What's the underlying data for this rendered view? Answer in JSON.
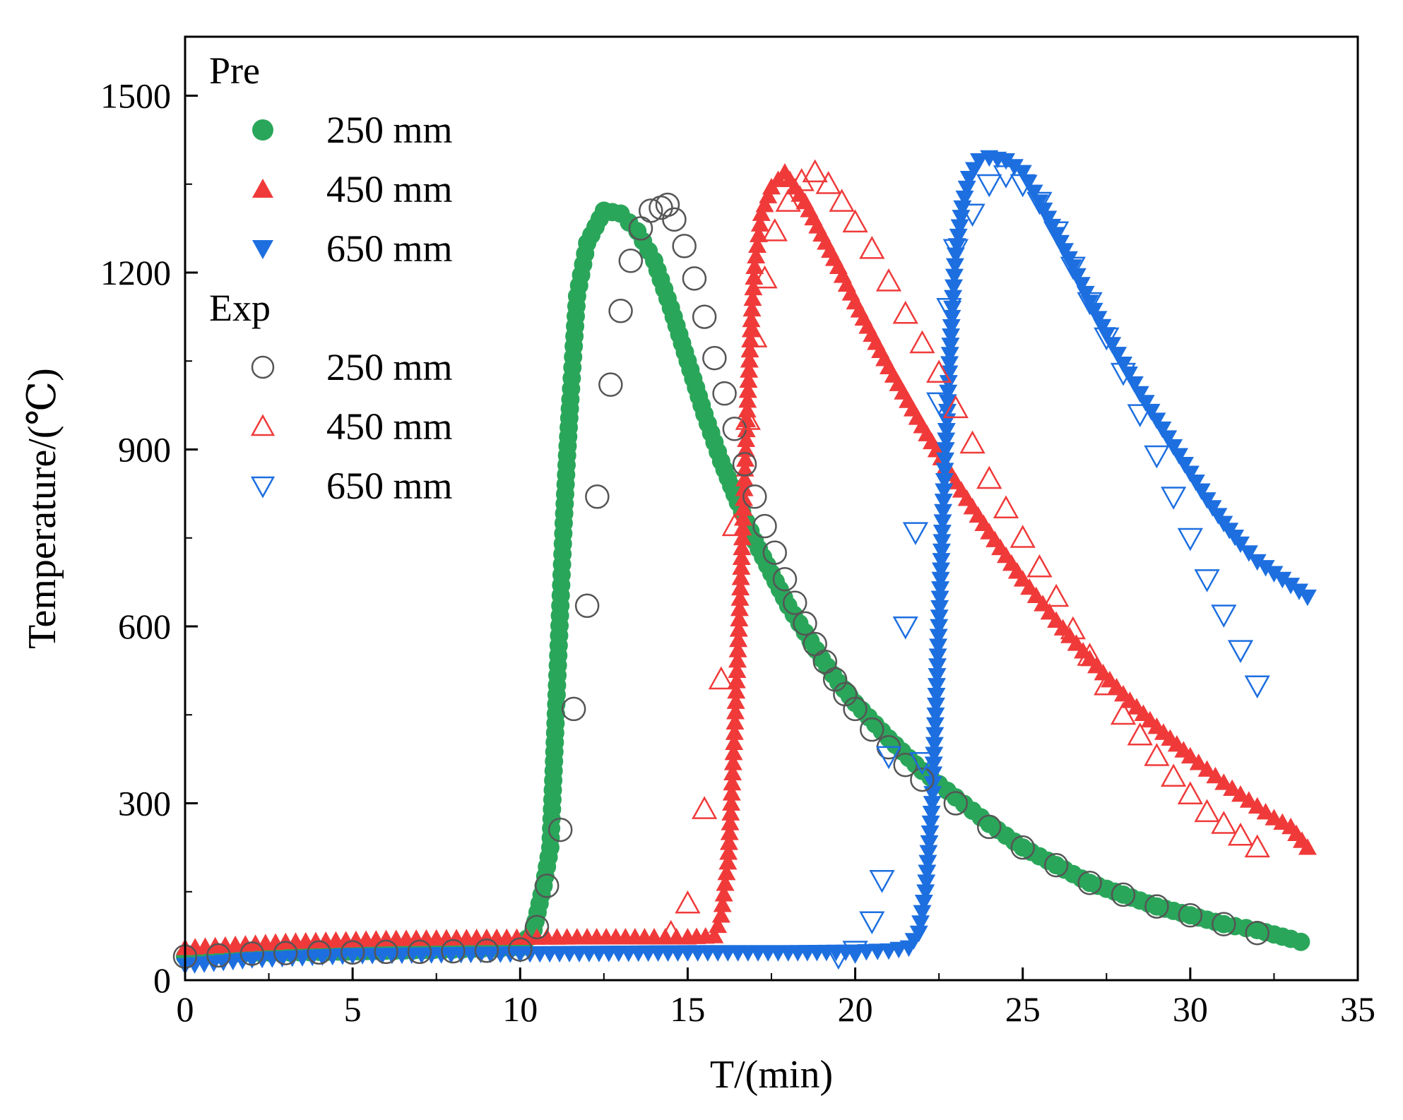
{
  "chart_data": {
    "type": "scatter",
    "xlabel": "T/(min)",
    "ylabel": "Temperature/(℃)",
    "xlim": [
      0,
      35
    ],
    "ylim": [
      0,
      1600
    ],
    "xticks": [
      0,
      5,
      10,
      15,
      20,
      25,
      30,
      35
    ],
    "yticks": [
      0,
      300,
      600,
      900,
      1200,
      1500
    ],
    "grid": false,
    "legend_position": "top-left",
    "legend": {
      "groups": [
        {
          "title": "Pre",
          "entries": [
            {
              "label": "250 mm",
              "marker": "filled-circle",
              "color": "#2aa65a"
            },
            {
              "label": "450 mm",
              "marker": "filled-triangle-up",
              "color": "#f03a3a"
            },
            {
              "label": "650 mm",
              "marker": "filled-triangle-down",
              "color": "#1d6fe0"
            }
          ]
        },
        {
          "title": "Exp",
          "entries": [
            {
              "label": "250 mm",
              "marker": "open-circle",
              "color": "#555555"
            },
            {
              "label": "450 mm",
              "marker": "open-triangle-up",
              "color": "#f03a3a"
            },
            {
              "label": "650 mm",
              "marker": "open-triangle-down",
              "color": "#1d6fe0"
            }
          ]
        }
      ]
    },
    "series": [
      {
        "group": "Pre",
        "name": "250 mm",
        "marker": "filled-circle",
        "color": "#2aa65a",
        "x": [
          0,
          2,
          4,
          6,
          8,
          10,
          10.4,
          10.7,
          10.9,
          11.0,
          11.1,
          11.2,
          11.3,
          11.4,
          11.5,
          11.6,
          11.7,
          12.0,
          12.5,
          13.0,
          13.5,
          14.0,
          14.5,
          15.0,
          15.5,
          16.0,
          16.5,
          17.0,
          17.5,
          18.0,
          18.5,
          19.0,
          19.5,
          20.0,
          21.0,
          22.0,
          23.0,
          24.0,
          25.0,
          26.0,
          27.0,
          28.0,
          29.0,
          30.0,
          31.0,
          32.0,
          33.0,
          33.3
        ],
        "y": [
          40,
          45,
          48,
          50,
          52,
          55,
          85,
          160,
          225,
          355,
          500,
          635,
          775,
          890,
          985,
          1075,
          1160,
          1250,
          1305,
          1300,
          1270,
          1220,
          1140,
          1050,
          960,
          880,
          810,
          745,
          690,
          635,
          590,
          545,
          505,
          470,
          410,
          355,
          310,
          265,
          225,
          195,
          165,
          145,
          125,
          110,
          95,
          85,
          70,
          65
        ]
      },
      {
        "group": "Pre",
        "name": "450 mm",
        "marker": "filled-triangle-up",
        "color": "#f03a3a",
        "x": [
          0,
          3,
          6,
          9,
          12,
          14,
          15,
          15.8,
          16.0,
          16.2,
          16.3,
          16.4,
          16.5,
          16.6,
          16.7,
          16.8,
          16.9,
          17.0,
          17.2,
          17.5,
          17.9,
          18.5,
          19.0,
          19.5,
          20.0,
          20.5,
          21.0,
          22.0,
          23.0,
          24.0,
          25.0,
          26.0,
          27.0,
          28.0,
          29.0,
          30.0,
          31.0,
          32.0,
          32.5,
          33.0,
          33.5
        ],
        "y": [
          55,
          65,
          70,
          72,
          73,
          73,
          73,
          75,
          110,
          200,
          300,
          420,
          560,
          700,
          850,
          1000,
          1120,
          1210,
          1300,
          1345,
          1370,
          1320,
          1265,
          1210,
          1150,
          1095,
          1040,
          940,
          845,
          760,
          680,
          610,
          545,
          485,
          430,
          380,
          335,
          295,
          275,
          260,
          225
        ]
      },
      {
        "group": "Pre",
        "name": "650 mm",
        "marker": "filled-triangle-down",
        "color": "#1d6fe0",
        "x": [
          0,
          2,
          5,
          10,
          15,
          18,
          20,
          21,
          21.6,
          21.9,
          22.1,
          22.3,
          22.4,
          22.5,
          22.6,
          22.7,
          22.8,
          22.9,
          23.0,
          23.2,
          23.4,
          23.7,
          24.0,
          24.5,
          25.0,
          25.5,
          26.0,
          26.5,
          27.0,
          27.5,
          28.0,
          28.5,
          29.0,
          29.5,
          30.0,
          30.5,
          31.0,
          31.5,
          32.0,
          32.5,
          33.0,
          33.5
        ],
        "y": [
          25,
          35,
          42,
          45,
          47,
          47,
          48,
          50,
          55,
          80,
          150,
          300,
          450,
          600,
          760,
          900,
          1030,
          1140,
          1230,
          1310,
          1360,
          1390,
          1395,
          1390,
          1370,
          1320,
          1265,
          1210,
          1150,
          1095,
          1045,
          995,
          950,
          905,
          860,
          815,
          775,
          740,
          710,
          690,
          670,
          650
        ]
      },
      {
        "group": "Exp",
        "name": "250 mm",
        "marker": "open-circle",
        "color": "#555555",
        "x": [
          0,
          1,
          2,
          3,
          4,
          5,
          6,
          7,
          8,
          9,
          10,
          10.5,
          10.8,
          11.2,
          11.6,
          12.0,
          12.3,
          12.7,
          13.0,
          13.3,
          13.6,
          13.9,
          14.2,
          14.4,
          14.6,
          14.9,
          15.2,
          15.5,
          15.8,
          16.1,
          16.4,
          16.7,
          17.0,
          17.3,
          17.6,
          17.9,
          18.2,
          18.5,
          18.8,
          19.1,
          19.4,
          19.7,
          20.0,
          20.5,
          21.0,
          21.5,
          22.0,
          23.0,
          24.0,
          25.0,
          26.0,
          27.0,
          28.0,
          29.0,
          30.0,
          31.0,
          32.0
        ],
        "y": [
          40,
          42,
          45,
          46,
          47,
          47,
          48,
          48,
          49,
          50,
          52,
          90,
          160,
          255,
          460,
          635,
          820,
          1010,
          1135,
          1220,
          1275,
          1305,
          1310,
          1315,
          1290,
          1245,
          1190,
          1125,
          1055,
          995,
          935,
          875,
          820,
          770,
          725,
          680,
          640,
          605,
          570,
          540,
          510,
          485,
          460,
          425,
          395,
          365,
          340,
          300,
          260,
          225,
          195,
          165,
          145,
          125,
          110,
          95,
          80
        ]
      },
      {
        "group": "Exp",
        "name": "450 mm",
        "marker": "open-triangle-up",
        "color": "#f03a3a",
        "x": [
          14.5,
          15.0,
          15.5,
          16.0,
          16.4,
          16.8,
          17.0,
          17.3,
          17.6,
          18.0,
          18.4,
          18.8,
          19.2,
          19.6,
          20.0,
          20.5,
          21.0,
          21.5,
          22.0,
          22.5,
          23.0,
          23.5,
          24.0,
          24.5,
          25.0,
          25.5,
          26.0,
          26.5,
          27.0,
          27.5,
          28.0,
          28.5,
          29.0,
          29.5,
          30.0,
          30.5,
          31.0,
          31.5,
          32.0
        ],
        "y": [
          80,
          130,
          290,
          510,
          770,
          950,
          1090,
          1190,
          1270,
          1320,
          1355,
          1370,
          1350,
          1320,
          1285,
          1240,
          1185,
          1130,
          1080,
          1030,
          970,
          910,
          850,
          800,
          750,
          700,
          650,
          595,
          550,
          500,
          450,
          415,
          380,
          345,
          315,
          285,
          265,
          245,
          225
        ]
      },
      {
        "group": "Exp",
        "name": "650 mm",
        "marker": "open-triangle-down",
        "color": "#1d6fe0",
        "x": [
          19.5,
          20.0,
          20.5,
          20.8,
          21.0,
          21.5,
          21.8,
          22.0,
          22.5,
          22.8,
          23.0,
          23.5,
          24.0,
          24.5,
          25.0,
          25.5,
          26.0,
          26.5,
          27.0,
          27.5,
          28.0,
          28.5,
          29.0,
          29.5,
          30.0,
          30.5,
          31.0,
          31.5,
          32.0
        ],
        "y": [
          40,
          50,
          100,
          170,
          380,
          600,
          760,
          370,
          980,
          1140,
          1240,
          1300,
          1350,
          1365,
          1350,
          1320,
          1270,
          1210,
          1150,
          1090,
          1030,
          960,
          890,
          820,
          750,
          680,
          620,
          560,
          500
        ]
      }
    ]
  }
}
